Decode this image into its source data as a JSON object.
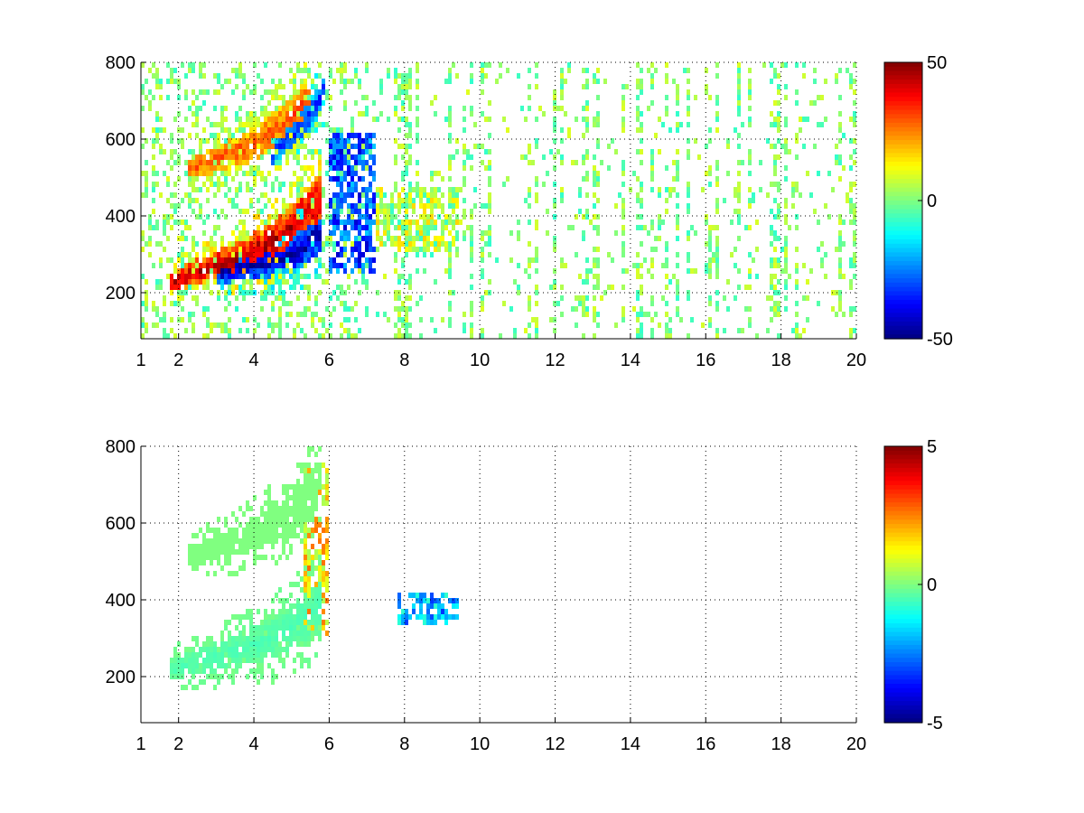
{
  "figure": {
    "background": "#ffffff"
  },
  "colormap": "jet",
  "chart_data": [
    {
      "type": "heatmap",
      "title": "",
      "xlabel": "",
      "ylabel": "",
      "xlim": [
        1,
        20
      ],
      "ylim": [
        80,
        800
      ],
      "xticks": [
        1,
        2,
        4,
        6,
        8,
        10,
        12,
        14,
        16,
        18,
        20
      ],
      "yticks": [
        200,
        400,
        600,
        800
      ],
      "grid": true,
      "colorbar": {
        "clim": [
          -50,
          50
        ],
        "ticks": [
          50,
          0,
          -50
        ]
      },
      "features": [
        {
          "kind": "ridge",
          "x": [
            1.8,
            2.5,
            3.5,
            4.5,
            5.2,
            5.8
          ],
          "y": [
            225,
            255,
            285,
            330,
            390,
            450
          ],
          "value": 45
        },
        {
          "kind": "ridge",
          "x": [
            3.0,
            3.8,
            4.6,
            5.3,
            5.8
          ],
          "y": [
            250,
            265,
            285,
            315,
            360
          ],
          "value": -45
        },
        {
          "kind": "ridge",
          "x": [
            2.2,
            3.0,
            4.0,
            4.8,
            5.5
          ],
          "y": [
            520,
            545,
            585,
            640,
            710
          ],
          "value": 30
        },
        {
          "kind": "ridge",
          "x": [
            4.5,
            5.0,
            5.5,
            5.9
          ],
          "y": [
            560,
            610,
            660,
            730
          ],
          "value": -35
        },
        {
          "kind": "patch",
          "x": [
            6.0,
            7.2
          ],
          "y": [
            250,
            620
          ],
          "value": -30
        },
        {
          "kind": "patch",
          "x": [
            7.2,
            9.4
          ],
          "y": [
            300,
            480
          ],
          "value": 5
        }
      ]
    },
    {
      "type": "heatmap",
      "title": "",
      "xlabel": "",
      "ylabel": "",
      "xlim": [
        1,
        20
      ],
      "ylim": [
        80,
        800
      ],
      "xticks": [
        1,
        2,
        4,
        6,
        8,
        10,
        12,
        14,
        16,
        18,
        20
      ],
      "yticks": [
        200,
        400,
        600,
        800
      ],
      "grid": true,
      "colorbar": {
        "clim": [
          -5,
          5
        ],
        "ticks": [
          5,
          0,
          -5
        ]
      },
      "features": [
        {
          "kind": "ridge",
          "x": [
            1.8,
            3.0,
            4.5,
            5.8
          ],
          "y": [
            220,
            250,
            300,
            380
          ],
          "value": -0.5
        },
        {
          "kind": "ridge",
          "x": [
            2.2,
            3.5,
            5.0,
            5.8
          ],
          "y": [
            510,
            550,
            620,
            720
          ],
          "value": 0
        },
        {
          "kind": "patch",
          "x": [
            5.3,
            6.0
          ],
          "y": [
            300,
            760
          ],
          "value": 1.5
        },
        {
          "kind": "patch",
          "x": [
            7.8,
            9.4
          ],
          "y": [
            330,
            420
          ],
          "value": -2
        }
      ]
    }
  ]
}
